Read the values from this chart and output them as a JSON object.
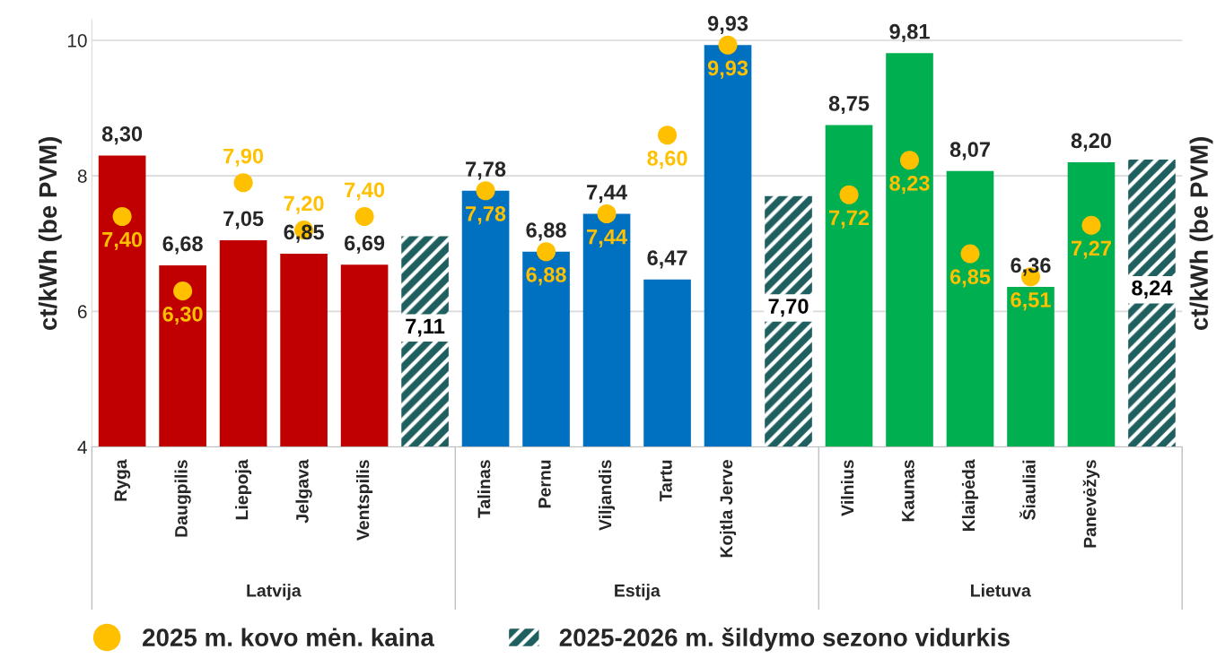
{
  "chart_data": {
    "type": "bar",
    "ylabel": "ct/kWh (be PVM)",
    "y2label": "ct/kWh (be PVM)",
    "categories": [
      "Ryga",
      "Daugpilis",
      "Liepoja",
      "Jelgava",
      "Ventspilis",
      null,
      "Talinas",
      "Pernu",
      "Viljandis",
      "Tartu",
      "Kojtla Jerve",
      null,
      "Vilnius",
      "Kaunas",
      "Klaipėda",
      "Šiauliai",
      "Panevėžys",
      null
    ],
    "annotations": [
      "Latvija",
      "Estija",
      "Lietuva"
    ],
    "series": [
      {
        "colors": [
          "#c00000",
          "#c00000",
          "#c00000",
          "#c00000",
          "#c00000",
          null,
          "#0070c0",
          "#0070c0",
          "#0070c0",
          "#0070c0",
          "#0070c0",
          null,
          "#00b050",
          "#00b050",
          "#00b050",
          "#00b050",
          "#00b050",
          null
        ],
        "values": [
          8.3,
          6.68,
          7.05,
          6.85,
          6.69,
          null,
          7.78,
          6.88,
          7.44,
          6.47,
          9.93,
          null,
          8.75,
          9.81,
          8.07,
          6.36,
          8.2,
          null
        ],
        "value_labels": [
          "8,30",
          "6,68",
          "7,05",
          "6,85",
          "6,69",
          null,
          "7,78",
          "6,88",
          "7,44",
          "6,47",
          "9,93",
          null,
          "8,75",
          "9,81",
          "8,07",
          "6,36",
          "8,20",
          null
        ]
      },
      {
        "type": "bar",
        "name": "2025-2026 m. šildymo sezono vidurkis",
        "color": "#1f5f5f",
        "values": [
          null,
          null,
          null,
          null,
          null,
          7.11,
          null,
          null,
          null,
          null,
          null,
          7.7,
          null,
          null,
          null,
          null,
          null,
          8.24
        ],
        "value_labels": [
          null,
          null,
          null,
          null,
          null,
          "7,11",
          null,
          null,
          null,
          null,
          null,
          "7,70",
          null,
          null,
          null,
          null,
          null,
          "8,24"
        ]
      },
      {
        "type": "scatter",
        "name": "2025 m. kovo mėn. kaina",
        "color": "#ffc000",
        "values": [
          7.4,
          6.3,
          7.9,
          7.2,
          7.4,
          null,
          7.78,
          6.88,
          7.44,
          8.6,
          9.93,
          null,
          7.72,
          8.23,
          6.85,
          6.51,
          7.27,
          null
        ],
        "value_labels": [
          "7,40",
          "6,30",
          "7,90",
          "7,20",
          "7,40",
          null,
          "7,78",
          "6,88",
          "7,44",
          "8,60",
          "9,93",
          null,
          "7,72",
          "8,23",
          "6,85",
          "6,51",
          "7,27",
          null
        ]
      }
    ],
    "ylim": [
      4,
      10.3
    ],
    "yticks": [
      4,
      6,
      8,
      10
    ],
    "grid": "y",
    "legend": "bottom",
    "marker": "circle"
  }
}
